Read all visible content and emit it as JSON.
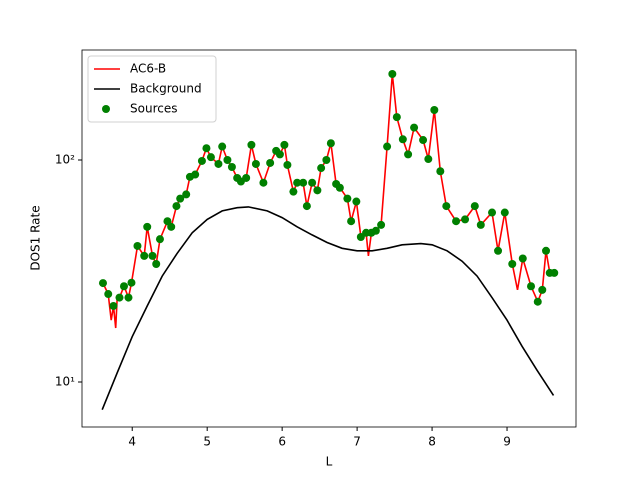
{
  "chart_data": {
    "type": "line",
    "xlabel": "L",
    "ylabel": "DOS1 Rate",
    "xlim": [
      3.33,
      9.92
    ],
    "xticks": [
      4,
      5,
      6,
      7,
      8,
      9
    ],
    "ylim": [
      6.27,
      313
    ],
    "ylog": true,
    "yticks": [
      {
        "value": 10,
        "label": "10¹"
      },
      {
        "value": 100,
        "label": "10²"
      }
    ],
    "legend": "upper left",
    "grid": false,
    "series": [
      {
        "name": "AC6-B",
        "color": "#ff0000",
        "style": "line",
        "x": [
          3.61,
          3.68,
          3.72,
          3.75,
          3.78,
          3.8,
          3.83,
          3.89,
          3.95,
          3.99,
          4.07,
          4.16,
          4.2,
          4.27,
          4.32,
          4.37,
          4.47,
          4.52,
          4.59,
          4.64,
          4.72,
          4.77,
          4.84,
          4.93,
          4.99,
          5.05,
          5.15,
          5.2,
          5.27,
          5.33,
          5.4,
          5.45,
          5.52,
          5.59,
          5.65,
          5.75,
          5.84,
          5.92,
          5.97,
          6.03,
          6.07,
          6.15,
          6.2,
          6.28,
          6.33,
          6.4,
          6.47,
          6.52,
          6.59,
          6.65,
          6.72,
          6.77,
          6.87,
          6.92,
          6.99,
          7.05,
          7.12,
          7.15,
          7.19,
          7.25,
          7.32,
          7.4,
          7.47,
          7.53,
          7.61,
          7.68,
          7.76,
          7.88,
          7.95,
          8.03,
          8.11,
          8.19,
          8.32,
          8.44,
          8.57,
          8.65,
          8.8,
          8.88,
          8.97,
          9.07,
          9.14,
          9.21,
          9.32,
          9.41,
          9.47,
          9.52,
          9.57,
          9.63
        ],
        "values": [
          27.9,
          24.9,
          19,
          22,
          17.5,
          24,
          24,
          27,
          24,
          28,
          41,
          37,
          50,
          37,
          34,
          44,
          53,
          50,
          62,
          67,
          70,
          84,
          86,
          99,
          113,
          103,
          96,
          115,
          100,
          93,
          83,
          80,
          83,
          117,
          96,
          79,
          97,
          110,
          106,
          117,
          95,
          72,
          79,
          79,
          62,
          79,
          73,
          92,
          100,
          119,
          78,
          75,
          67,
          53,
          65,
          45,
          47,
          37,
          47,
          48,
          51,
          115,
          244,
          156,
          124,
          106,
          140,
          123,
          101,
          168,
          89,
          62,
          53,
          54,
          62,
          51,
          58,
          39,
          58,
          34,
          26,
          36,
          27,
          23,
          26,
          39,
          31,
          31
        ]
      },
      {
        "name": "Background",
        "color": "#000000",
        "style": "line",
        "x": [
          3.6,
          3.8,
          4.0,
          4.2,
          4.4,
          4.6,
          4.8,
          5.0,
          5.2,
          5.4,
          5.55,
          5.8,
          6.0,
          6.2,
          6.4,
          6.6,
          6.8,
          7.0,
          7.2,
          7.4,
          7.6,
          7.85,
          8.0,
          8.2,
          8.4,
          8.6,
          8.8,
          9.0,
          9.2,
          9.4,
          9.62
        ],
        "values": [
          7.5,
          11,
          16,
          22,
          30,
          38,
          47,
          54,
          59,
          61,
          61.5,
          59,
          55,
          50,
          46,
          42.5,
          40,
          39,
          39,
          40,
          41.5,
          42,
          41.5,
          39,
          35,
          30,
          24,
          19,
          14.5,
          11.3,
          8.7
        ]
      },
      {
        "name": "Sources",
        "color": "#008000",
        "style": "marker",
        "x": [
          3.61,
          3.68,
          3.75,
          3.83,
          3.89,
          3.95,
          3.99,
          4.07,
          4.16,
          4.2,
          4.27,
          4.32,
          4.37,
          4.47,
          4.52,
          4.59,
          4.64,
          4.72,
          4.77,
          4.84,
          4.93,
          4.99,
          5.05,
          5.15,
          5.2,
          5.27,
          5.33,
          5.4,
          5.45,
          5.52,
          5.59,
          5.65,
          5.75,
          5.84,
          5.92,
          5.97,
          6.03,
          6.07,
          6.15,
          6.2,
          6.28,
          6.33,
          6.4,
          6.47,
          6.52,
          6.59,
          6.65,
          6.72,
          6.77,
          6.87,
          6.92,
          6.99,
          7.05,
          7.12,
          7.19,
          7.25,
          7.32,
          7.4,
          7.47,
          7.53,
          7.61,
          7.68,
          7.76,
          7.88,
          7.95,
          8.03,
          8.11,
          8.19,
          8.32,
          8.44,
          8.57,
          8.65,
          8.8,
          8.88,
          8.97,
          9.07,
          9.21,
          9.32,
          9.41,
          9.47,
          9.52,
          9.57,
          9.63
        ],
        "values": [
          27.9,
          24.9,
          22,
          24,
          27,
          24,
          28,
          41,
          37,
          50,
          37,
          34,
          44,
          53,
          50,
          62,
          67,
          70,
          84,
          86,
          99,
          113,
          103,
          96,
          115,
          100,
          93,
          83,
          80,
          83,
          117,
          96,
          79,
          97,
          110,
          106,
          117,
          95,
          72,
          79,
          79,
          62,
          79,
          73,
          92,
          100,
          119,
          78,
          75,
          67,
          53,
          65,
          45,
          47,
          47,
          48,
          51,
          115,
          244,
          156,
          124,
          106,
          140,
          123,
          101,
          168,
          89,
          62,
          53,
          54,
          62,
          51,
          58,
          39,
          58,
          34,
          36,
          27,
          23,
          26,
          39,
          31,
          31
        ]
      }
    ]
  }
}
